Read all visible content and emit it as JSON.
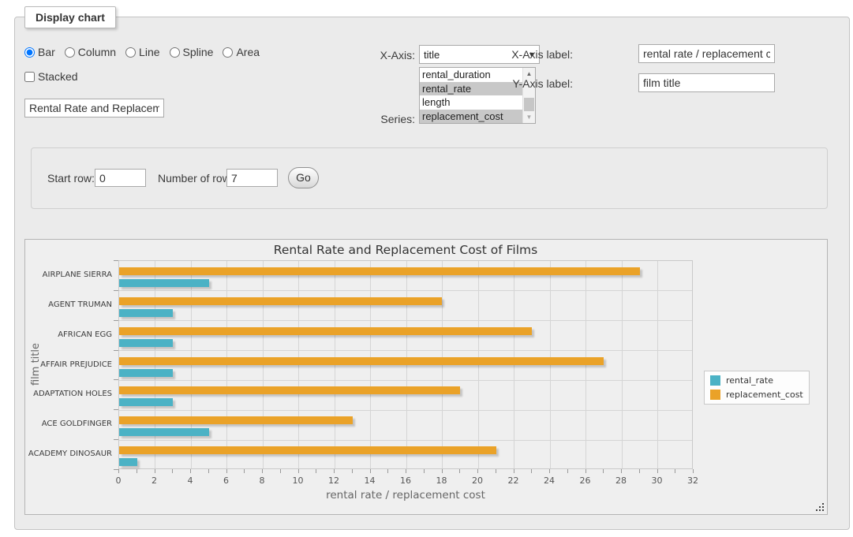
{
  "panel": {
    "legend": "Display chart"
  },
  "chart_type_options": [
    {
      "label": "Bar",
      "selected": true
    },
    {
      "label": "Column",
      "selected": false
    },
    {
      "label": "Line",
      "selected": false
    },
    {
      "label": "Spline",
      "selected": false
    },
    {
      "label": "Area",
      "selected": false
    }
  ],
  "stacked": {
    "label": "Stacked",
    "checked": false
  },
  "title_input": {
    "value": "Rental Rate and Replacement Cost of Films"
  },
  "x_axis_select": {
    "label": "X-Axis:",
    "value": "title"
  },
  "series_select": {
    "label": "Series:",
    "options": [
      {
        "label": "rental_duration",
        "selected": false
      },
      {
        "label": "rental_rate",
        "selected": true
      },
      {
        "label": "length",
        "selected": false
      },
      {
        "label": "replacement_cost",
        "selected": true
      }
    ]
  },
  "x_axis_label": {
    "label": "X-Axis label:",
    "value": "rental rate / replacement cost"
  },
  "y_axis_label": {
    "label": "Y-Axis label:",
    "value": "film title"
  },
  "row_controls": {
    "start_row_label": "Start row:",
    "start_row_value": "0",
    "num_rows_label": "Number of rows:",
    "num_rows_value": "7",
    "go_label": "Go"
  },
  "chart_data": {
    "type": "bar",
    "orientation": "horizontal",
    "title": "Rental Rate and Replacement Cost of Films",
    "categories": [
      "AIRPLANE SIERRA",
      "AGENT TRUMAN",
      "AFRICAN EGG",
      "AFFAIR PREJUDICE",
      "ADAPTATION HOLES",
      "ACE GOLDFINGER",
      "ACADEMY DINOSAUR"
    ],
    "series": [
      {
        "name": "rental_rate",
        "color": "#4bb2c5",
        "values": [
          4.99,
          2.99,
          2.99,
          2.99,
          2.99,
          4.99,
          0.99
        ]
      },
      {
        "name": "replacement_cost",
        "color": "#eaa228",
        "values": [
          28.99,
          17.99,
          22.99,
          26.99,
          18.99,
          12.99,
          20.99
        ]
      }
    ],
    "xlabel": "rental rate / replacement cost",
    "ylabel": "film title",
    "xlim": [
      0,
      32
    ],
    "xtick_step": 2,
    "minor_tick_step": 1,
    "grid": true,
    "legend_position": "right"
  }
}
